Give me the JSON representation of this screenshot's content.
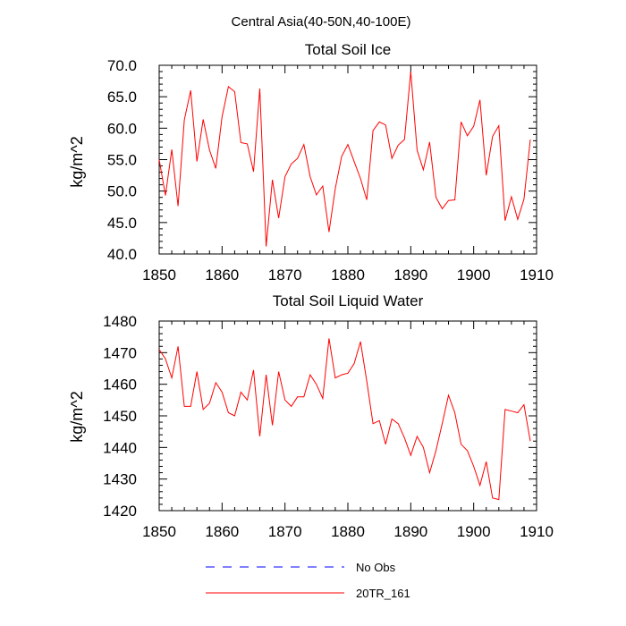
{
  "title": "Central Asia(40-50N,40-100E)",
  "chart_data": [
    {
      "type": "line",
      "title": "Total Soil Ice",
      "ylabel": "kg/m^2",
      "xlim": [
        1850,
        1910
      ],
      "ylim": [
        40,
        70
      ],
      "xticks": [
        1850,
        1860,
        1870,
        1880,
        1890,
        1900,
        1910
      ],
      "yticks": [
        "40.0",
        "45.0",
        "50.0",
        "55.0",
        "60.0",
        "65.0",
        "70.0"
      ],
      "yticks_values": [
        40,
        45,
        50,
        55,
        60,
        65,
        70
      ],
      "series": [
        {
          "name": "20TR_161",
          "color": "#ff0000",
          "x": [
            1850,
            1851,
            1852,
            1853,
            1854,
            1855,
            1856,
            1857,
            1858,
            1859,
            1860,
            1861,
            1862,
            1863,
            1864,
            1865,
            1866,
            1867,
            1868,
            1869,
            1870,
            1871,
            1872,
            1873,
            1874,
            1875,
            1876,
            1877,
            1878,
            1879,
            1880,
            1881,
            1882,
            1883,
            1884,
            1885,
            1886,
            1887,
            1888,
            1889,
            1890,
            1891,
            1892,
            1893,
            1894,
            1895,
            1896,
            1897,
            1898,
            1899,
            1900,
            1901,
            1902,
            1903,
            1904,
            1905,
            1906,
            1907,
            1908,
            1909
          ],
          "values": [
            55.0,
            49.3,
            56.6,
            47.6,
            61.3,
            66.0,
            54.7,
            61.4,
            56.5,
            53.6,
            61.8,
            66.6,
            65.8,
            57.7,
            57.5,
            53.1,
            66.3,
            41.2,
            51.8,
            45.7,
            52.3,
            54.3,
            55.2,
            57.4,
            52.3,
            49.4,
            50.8,
            43.5,
            50.4,
            55.5,
            57.4,
            54.7,
            52.0,
            48.6,
            59.6,
            61.0,
            60.5,
            55.2,
            57.3,
            58.2,
            69.0,
            56.5,
            53.4,
            57.8,
            49.0,
            47.2,
            48.5,
            48.6,
            61.0,
            58.8,
            60.3,
            64.5,
            52.5,
            58.7,
            60.4,
            45.3,
            49.1,
            45.5,
            48.7,
            58.2
          ]
        }
      ]
    },
    {
      "type": "line",
      "title": "Total Soil Liquid Water",
      "ylabel": "kg/m^2",
      "xlim": [
        1850,
        1910
      ],
      "ylim": [
        1420,
        1480
      ],
      "xticks": [
        1850,
        1860,
        1870,
        1880,
        1890,
        1900,
        1910
      ],
      "yticks": [
        "1420",
        "1430",
        "1440",
        "1450",
        "1460",
        "1470",
        "1480"
      ],
      "yticks_values": [
        1420,
        1430,
        1440,
        1450,
        1460,
        1470,
        1480
      ],
      "series": [
        {
          "name": "20TR_161",
          "color": "#ff0000",
          "x": [
            1850,
            1851,
            1852,
            1853,
            1854,
            1855,
            1856,
            1857,
            1858,
            1859,
            1860,
            1861,
            1862,
            1863,
            1864,
            1865,
            1866,
            1867,
            1868,
            1869,
            1870,
            1871,
            1872,
            1873,
            1874,
            1875,
            1876,
            1877,
            1878,
            1879,
            1880,
            1881,
            1882,
            1883,
            1884,
            1885,
            1886,
            1887,
            1888,
            1889,
            1890,
            1891,
            1892,
            1893,
            1894,
            1895,
            1896,
            1897,
            1898,
            1899,
            1900,
            1901,
            1902,
            1903,
            1904,
            1905,
            1906,
            1907,
            1908,
            1909
          ],
          "values": [
            1471,
            1468,
            1462,
            1472,
            1453,
            1453,
            1464,
            1452,
            1454,
            1460.5,
            1457.5,
            1451,
            1450,
            1457.5,
            1455,
            1464.5,
            1443.5,
            1463,
            1447,
            1464,
            1455,
            1453,
            1456,
            1456,
            1463,
            1460,
            1455.5,
            1474.5,
            1462,
            1463,
            1463.5,
            1466.5,
            1473.5,
            1461,
            1447.5,
            1448.5,
            1441,
            1449,
            1447.5,
            1443,
            1437.5,
            1443.5,
            1440,
            1432,
            1439,
            1447.5,
            1456.5,
            1451,
            1441,
            1439,
            1434,
            1428,
            1435.5,
            1424,
            1423.5,
            1452,
            1451.5,
            1451,
            1453.5,
            1442
          ]
        }
      ]
    }
  ],
  "legend": [
    {
      "label": "No Obs",
      "color": "#0000ff",
      "dash": true
    },
    {
      "label": "20TR_161",
      "color": "#ff0000",
      "dash": false
    }
  ]
}
